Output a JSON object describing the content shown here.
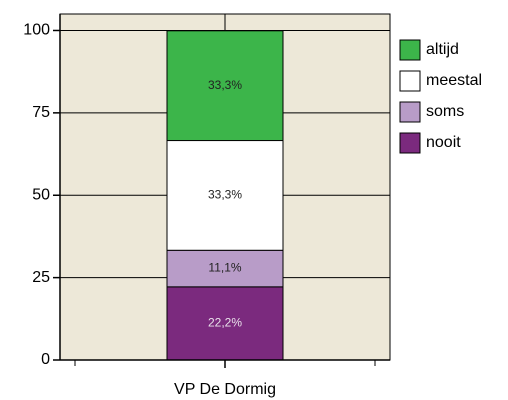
{
  "chart_data": {
    "type": "bar",
    "stacked": true,
    "categories": [
      "VP De Dormig"
    ],
    "series": [
      {
        "name": "altijd",
        "color": "#3cb54a",
        "values": [
          33.3
        ],
        "value_labels": [
          "33,3%"
        ]
      },
      {
        "name": "meestal",
        "color": "#ffffff",
        "values": [
          33.3
        ],
        "value_labels": [
          "33,3%"
        ]
      },
      {
        "name": "soms",
        "color": "#b89cc8",
        "values": [
          11.1
        ],
        "value_labels": [
          "11,1%"
        ]
      },
      {
        "name": "nooit",
        "color": "#7b2a7e",
        "values": [
          22.2
        ],
        "value_labels": [
          "22,2%"
        ]
      }
    ],
    "ylim": [
      0,
      105
    ],
    "yticks": [
      0,
      25,
      50,
      75,
      100
    ],
    "grid": true,
    "legend": "right"
  }
}
